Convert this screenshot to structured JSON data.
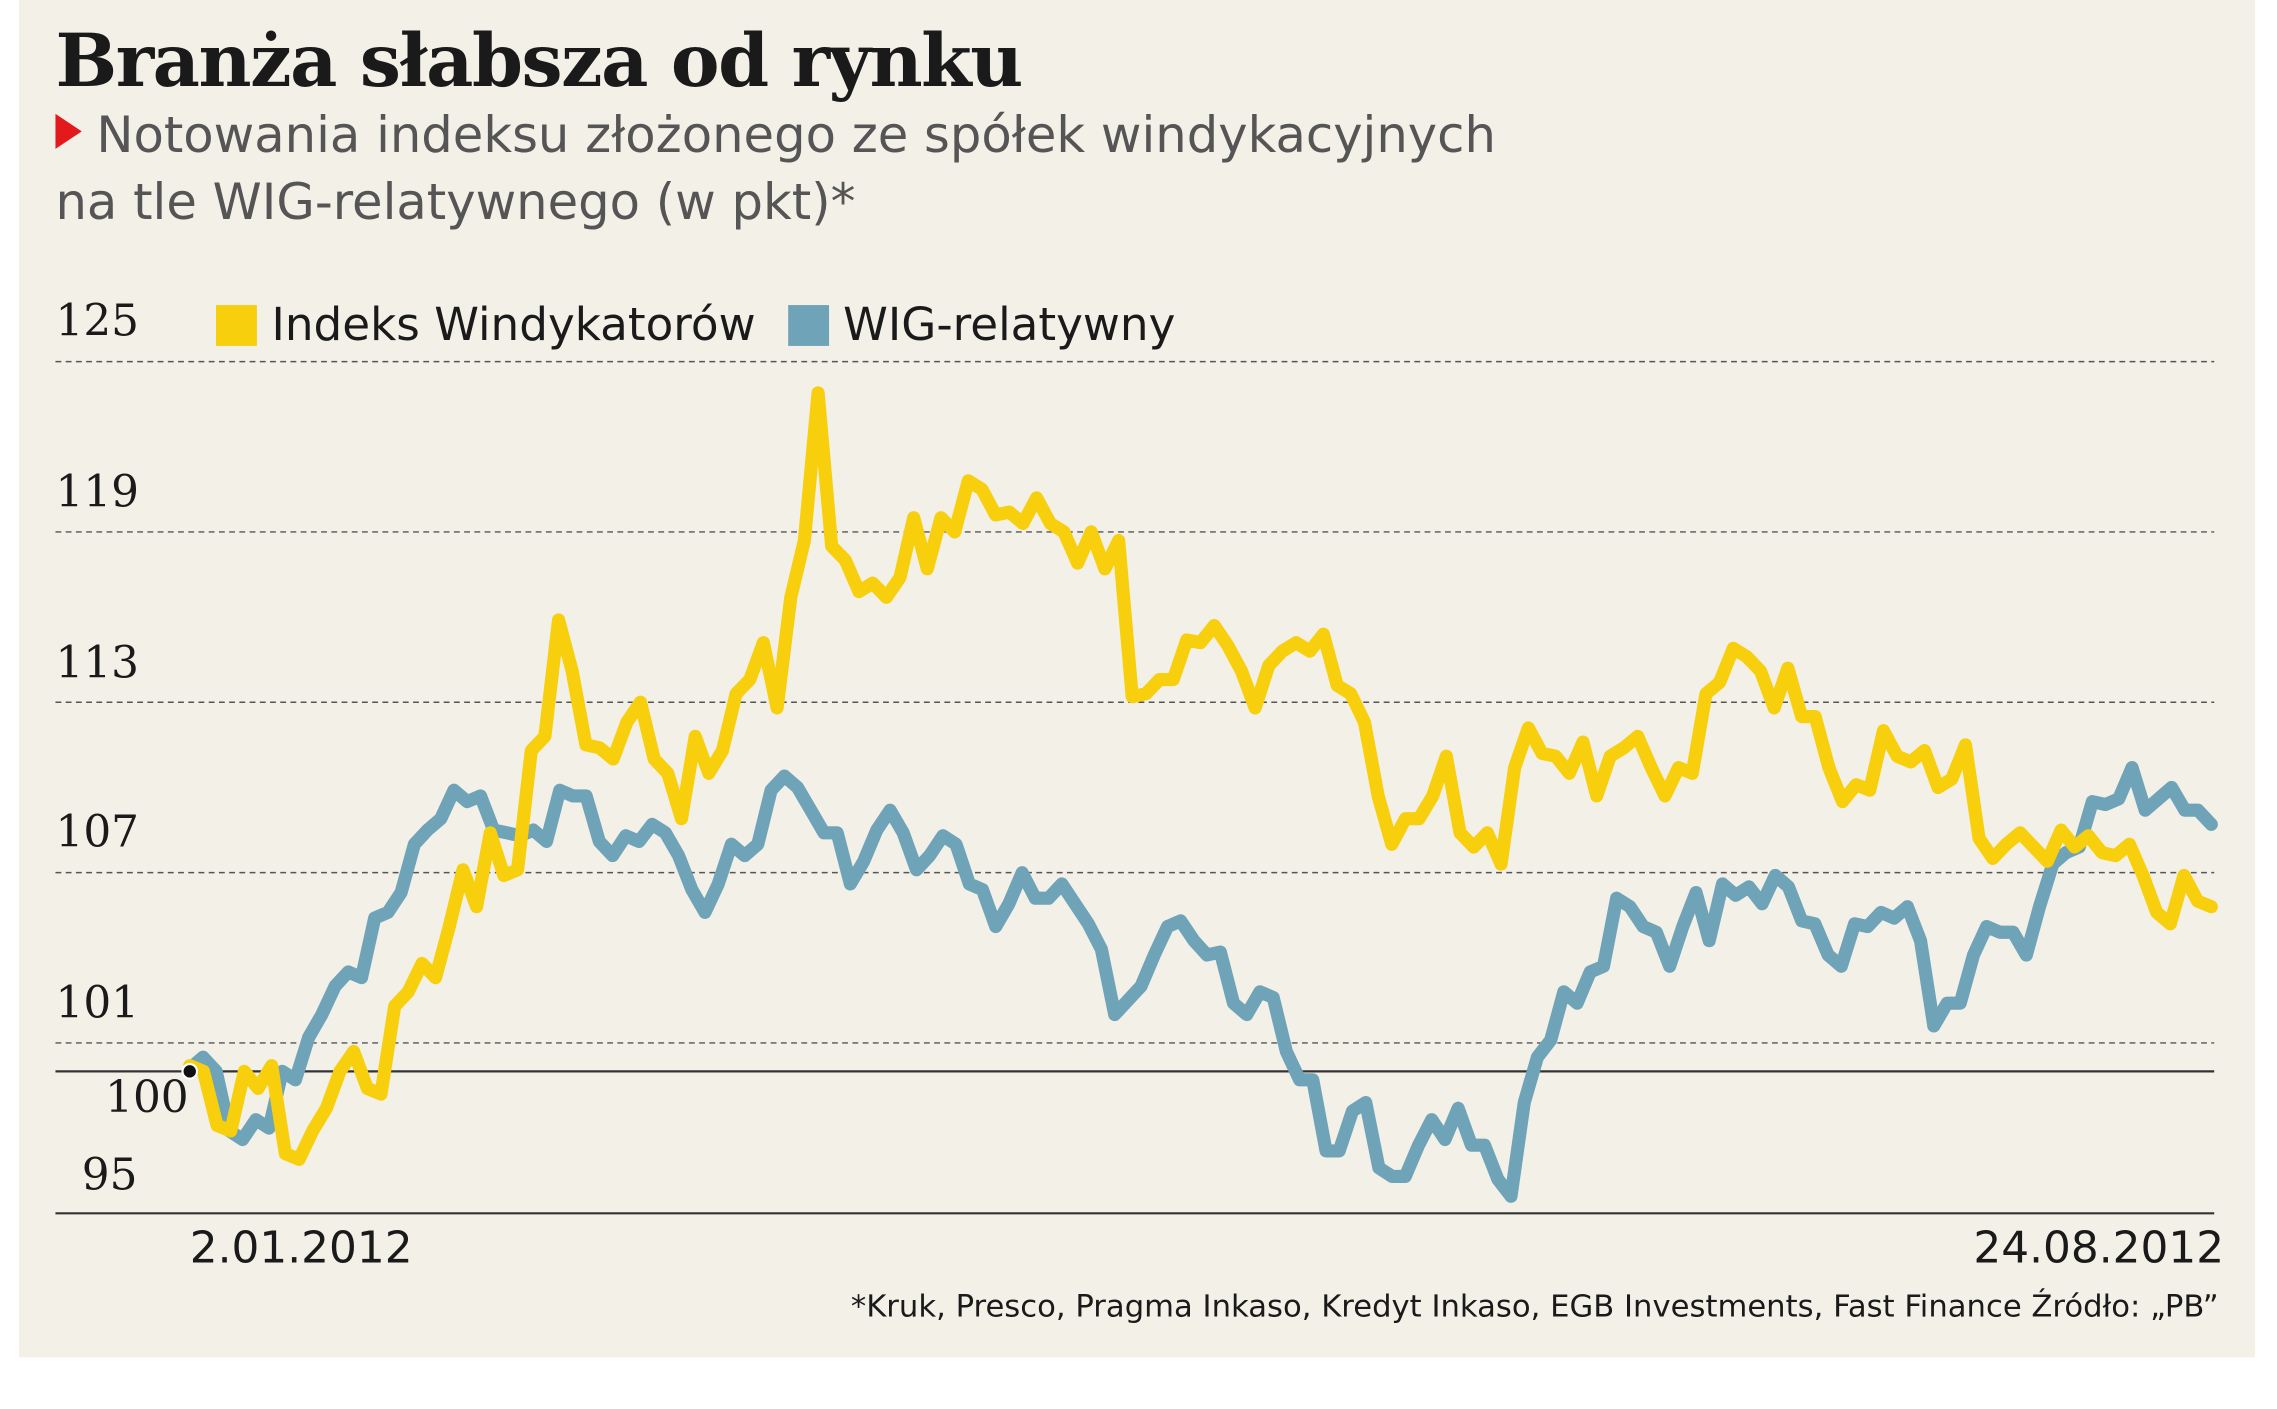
{
  "chart_data": {
    "type": "line",
    "title": "Branża słabsza od rynku",
    "subtitle_line1": "Notowania indeksu złożonego ze spółek windykacyjnych",
    "subtitle_line2": "na tle WIG-relatywnego (w pkt)*",
    "x_start_label": "2.01.2012",
    "x_end_label": "24.08.2012",
    "yticks": [
      "125",
      "119",
      "113",
      "107",
      "101"
    ],
    "ytick_values": [
      125,
      119,
      113,
      107,
      101
    ],
    "baseline_label": "100",
    "ymin_label": "95",
    "ylim": [
      95,
      125
    ],
    "grid": true,
    "legend_position": "top-left",
    "footnote": "*Kruk, Presco, Pragma Inkaso, Kredyt Inkaso, EGB Investments, Fast Finance Źródło: „PB”",
    "series": [
      {
        "name": "Indeks Windykatorów",
        "color": "#f7cf0c",
        "values": [
          100.2,
          100,
          98.1,
          97.9,
          100,
          99.4,
          100.2,
          97.1,
          96.9,
          97.9,
          98.7,
          100,
          100.7,
          99.4,
          99.2,
          102.3,
          102.8,
          103.8,
          103.3,
          105.1,
          107.1,
          105.8,
          108.4,
          106.9,
          107.1,
          111.3,
          111.8,
          115.9,
          114.1,
          111.5,
          111.4,
          111,
          112.3,
          113,
          111,
          110.5,
          108.9,
          111.8,
          110.5,
          111.3,
          113.3,
          113.8,
          115.1,
          112.8,
          116.7,
          118.7,
          123.9,
          118.5,
          118,
          116.9,
          117.2,
          116.7,
          117.4,
          119.5,
          117.7,
          119.5,
          119,
          120.8,
          120.5,
          119.6,
          119.7,
          119.3,
          120.2,
          119.3,
          119,
          117.9,
          119,
          117.7,
          118.7,
          113.2,
          113.3,
          113.8,
          113.8,
          115.2,
          115.1,
          115.7,
          115,
          114.1,
          112.8,
          114.3,
          114.8,
          115.1,
          114.8,
          115.4,
          113.6,
          113.3,
          112.3,
          109.7,
          108,
          108.9,
          108.9,
          109.7,
          111.1,
          108.4,
          107.9,
          108.4,
          107.3,
          110.7,
          112.1,
          111.2,
          111.1,
          110.5,
          111.6,
          109.7,
          111.1,
          111.4,
          111.8,
          110.7,
          109.7,
          110.7,
          110.5,
          113.3,
          113.7,
          114.9,
          114.6,
          114.1,
          112.8,
          114.2,
          112.5,
          112.5,
          110.7,
          109.5,
          110.1,
          109.9,
          112,
          111.1,
          110.9,
          111.3,
          110,
          110.3,
          111.5,
          108.2,
          107.5,
          108,
          108.4,
          107.9,
          107.4,
          108.5,
          107.9,
          108.3,
          107.7,
          107.6,
          108,
          106.9,
          105.6,
          105.2,
          106.9,
          106,
          105.8
        ]
      },
      {
        "name": "WIG-relatywny",
        "color": "#6fa3b8",
        "values": [
          100.1,
          100.5,
          100,
          97.9,
          97.6,
          98.3,
          98,
          100,
          99.7,
          101.2,
          102,
          103,
          103.5,
          103.3,
          105.4,
          105.6,
          106.3,
          108,
          108.5,
          108.9,
          109.9,
          109.5,
          109.7,
          108.5,
          108.4,
          108.3,
          108.5,
          108.1,
          109.9,
          109.7,
          109.7,
          108.1,
          107.6,
          108.3,
          108.1,
          108.7,
          108.4,
          107.6,
          106.4,
          105.6,
          106.6,
          108,
          107.6,
          108,
          109.9,
          110.4,
          110,
          109.2,
          108.4,
          108.4,
          106.6,
          107.4,
          108.5,
          109.2,
          108.4,
          107.1,
          107.6,
          108.3,
          108,
          106.6,
          106.4,
          105.1,
          105.9,
          107,
          106.1,
          106.1,
          106.6,
          105.9,
          105.2,
          104.3,
          102,
          102.5,
          103,
          104.1,
          105.1,
          105.3,
          104.6,
          104.1,
          104.2,
          102.4,
          102,
          102.8,
          102.6,
          100.7,
          99.7,
          99.7,
          97.2,
          97.2,
          98.6,
          98.9,
          96.6,
          96.3,
          96.3,
          97.4,
          98.3,
          97.6,
          98.7,
          97.4,
          97.4,
          96.2,
          95.6,
          98.9,
          100.5,
          101.1,
          102.8,
          102.4,
          103.5,
          103.7,
          106.1,
          105.8,
          105.1,
          104.9,
          103.7,
          105.1,
          106.3,
          104.6,
          106.6,
          106.2,
          106.5,
          105.9,
          106.9,
          106.5,
          105.3,
          105.2,
          104.1,
          103.7,
          105.2,
          105.1,
          105.6,
          105.4,
          105.8,
          104.6,
          101.6,
          102.4,
          102.4,
          104.1,
          105.1,
          104.9,
          104.9,
          104.1,
          105.8,
          107.3,
          107.7,
          107.9,
          109.5,
          109.4,
          109.6,
          110.7,
          109.2,
          109.6,
          110,
          109.2,
          109.2,
          108.7
        ]
      }
    ]
  }
}
